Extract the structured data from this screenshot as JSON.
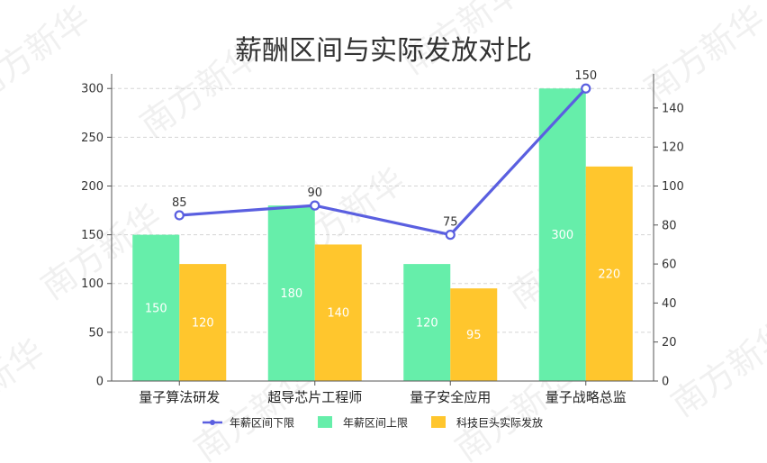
{
  "chart_data": {
    "type": "bar",
    "title": "薪酬区间与实际发放对比",
    "categories": [
      "量子算法研发",
      "超导芯片工程师",
      "量子安全应用",
      "量子战略总监"
    ],
    "series": [
      {
        "name": "年薪区间上限",
        "kind": "bar",
        "axis": "left",
        "color": "#66eeaa",
        "values": [
          150,
          180,
          120,
          300
        ]
      },
      {
        "name": "科技巨头实际发放",
        "kind": "bar",
        "axis": "left",
        "color": "#ffc62d",
        "values": [
          120,
          140,
          95,
          220
        ]
      },
      {
        "name": "年薪区间下限",
        "kind": "line",
        "axis": "right",
        "color": "#5a5fe0",
        "values": [
          85,
          90,
          75,
          150
        ]
      }
    ],
    "left_axis": {
      "min": 0,
      "max": 315,
      "ticks": [
        0,
        50,
        100,
        150,
        200,
        250,
        300
      ]
    },
    "right_axis": {
      "min": 0,
      "max": 157.5,
      "ticks": [
        0,
        20,
        40,
        60,
        80,
        100,
        120,
        140
      ]
    },
    "legend_order": [
      "年薪区间下限",
      "年薪区间上限",
      "科技巨头实际发放"
    ],
    "legend_placement": "bottom-center",
    "grid": "horizontal-dashed",
    "data_labels": true
  },
  "watermark": {
    "text": "南方新华"
  }
}
